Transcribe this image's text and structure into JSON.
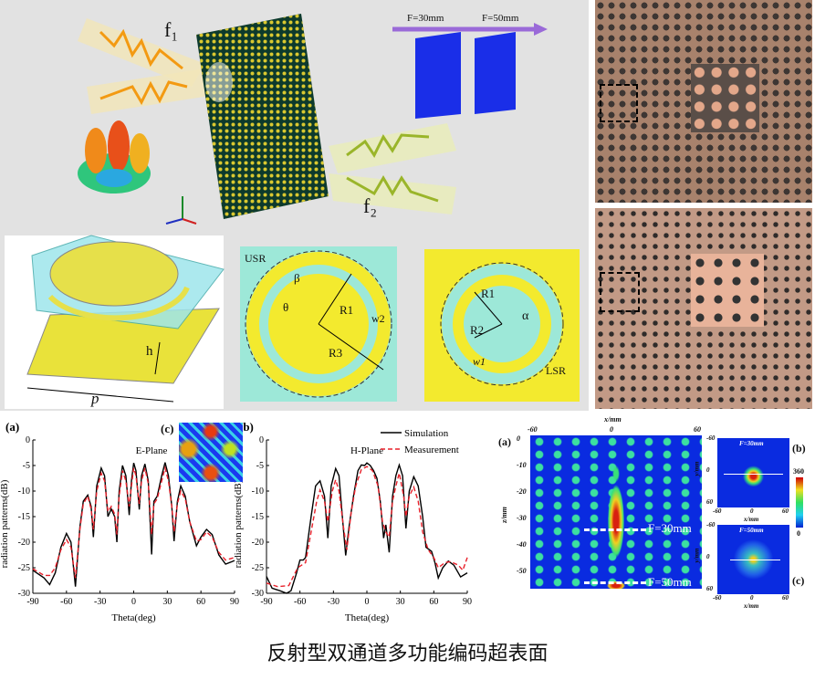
{
  "top_schematic": {
    "f1": "f₁",
    "f2": "f₂",
    "focus_labels": [
      "F=30mm",
      "F=50mm"
    ],
    "axis_labels": [
      "y",
      "x",
      "z"
    ]
  },
  "unit_cell": {
    "h": "h",
    "p": "p"
  },
  "usr_layer": {
    "usr": "USR",
    "beta": "β",
    "theta": "θ",
    "r1": "R1",
    "r3": "R3",
    "w2": "w2"
  },
  "lsr_layer": {
    "r1": "R1",
    "r2": "R2",
    "alpha": "α",
    "w1": "w1",
    "lsr": "LSR"
  },
  "colors": {
    "background_gray": "#dcdcdc",
    "metal_yellow": "#f3ea2e",
    "dielectric_cyan": "#9de8d8",
    "heatmap_blue": "#0a2be0",
    "simulation": "#000000",
    "measurement": "#e8202a"
  },
  "chart_data": [
    {
      "type": "line",
      "panel_label": "(a)",
      "title": "E-Plane",
      "xlabel": "Theta(deg)",
      "ylabel": "radiation patterns(dB)",
      "xlim": [
        -90,
        90
      ],
      "ylim": [
        -30,
        0
      ],
      "xticks": [
        "-90",
        "-60",
        "-30",
        "0",
        "30",
        "60",
        "90"
      ],
      "yticks": [
        "0",
        "-5",
        "-10",
        "-15",
        "-20",
        "-25",
        "-30"
      ],
      "series": [
        {
          "style": "solid",
          "x": [
            -90,
            -80,
            -75,
            -70,
            -65,
            -60,
            -56,
            -52,
            -48,
            -45,
            -41,
            -38,
            -36,
            -33,
            -29,
            -26,
            -23,
            -20,
            -17,
            -15,
            -13,
            -10,
            -7,
            -4,
            -2,
            0,
            2,
            5,
            7,
            10,
            13,
            16,
            18,
            21,
            25,
            28,
            31,
            34,
            36,
            39,
            42,
            46,
            50,
            56,
            60,
            65,
            70,
            76,
            82,
            90
          ],
          "y": [
            -25.5,
            -27,
            -28.3,
            -26,
            -21,
            -18.3,
            -20,
            -28.7,
            -17,
            -12,
            -10.8,
            -13,
            -19,
            -9,
            -5.5,
            -7,
            -15,
            -13.5,
            -15,
            -20,
            -10,
            -5,
            -7,
            -14.7,
            -8,
            -4.5,
            -6,
            -13.6,
            -7,
            -4.7,
            -8,
            -22.4,
            -12,
            -11,
            -7,
            -4.4,
            -7,
            -13,
            -19.8,
            -12,
            -9,
            -11,
            -16,
            -20.7,
            -19,
            -17.5,
            -18.5,
            -22.5,
            -24.3,
            -23.6
          ]
        },
        {
          "style": "dashed",
          "x": [
            -90,
            -80,
            -75,
            -70,
            -65,
            -60,
            -56,
            -52,
            -48,
            -45,
            -41,
            -38,
            -36,
            -33,
            -29,
            -26,
            -23,
            -20,
            -17,
            -15,
            -13,
            -10,
            -7,
            -4,
            -2,
            0,
            2,
            5,
            7,
            10,
            13,
            16,
            18,
            21,
            25,
            28,
            31,
            34,
            36,
            39,
            42,
            46,
            50,
            56,
            60,
            65,
            70,
            76,
            82,
            90
          ],
          "y": [
            -25.2,
            -26.5,
            -26.5,
            -25,
            -21.5,
            -19.5,
            -21,
            -27,
            -17.5,
            -12.5,
            -11,
            -13.5,
            -17.5,
            -10,
            -6.5,
            -8,
            -14,
            -13,
            -14.5,
            -18.5,
            -11,
            -6,
            -8,
            -13,
            -9,
            -5.5,
            -7,
            -12.5,
            -8,
            -5.5,
            -8.5,
            -18.5,
            -12.5,
            -11.5,
            -8,
            -5.5,
            -8,
            -13,
            -18,
            -12.5,
            -10,
            -11.5,
            -16,
            -19.8,
            -19.5,
            -18,
            -19,
            -22,
            -23.5,
            -23
          ]
        }
      ]
    },
    {
      "type": "line",
      "panel_label": "(b)",
      "title": "H-Plane",
      "xlabel": "Theta(deg)",
      "ylabel": "radiation patterns(dB)",
      "xlim": [
        -90,
        90
      ],
      "ylim": [
        -30,
        0
      ],
      "xticks": [
        "-90",
        "-60",
        "-30",
        "0",
        "30",
        "60",
        "90"
      ],
      "yticks": [
        "0",
        "-5",
        "-10",
        "-15",
        "-20",
        "-25",
        "-30"
      ],
      "legend": [
        "Simulation",
        "Measurement"
      ],
      "legend_position": "top-right",
      "series": [
        {
          "name": "Simulation",
          "style": "solid",
          "x": [
            -90,
            -85,
            -78,
            -72,
            -68,
            -63,
            -60,
            -57,
            -55,
            -50,
            -46,
            -42,
            -38,
            -35,
            -32,
            -28,
            -25,
            -22,
            -19,
            -16,
            -12,
            -8,
            -5,
            -2,
            0,
            3,
            6,
            9,
            12,
            15,
            17,
            20,
            23,
            26,
            29,
            32,
            35,
            38,
            42,
            46,
            50,
            53,
            58,
            61,
            64,
            68,
            73,
            78,
            84,
            90
          ],
          "y": [
            -26.7,
            -29,
            -29.5,
            -30,
            -29.5,
            -26,
            -23.5,
            -23.5,
            -23,
            -15,
            -9,
            -8,
            -11,
            -19.2,
            -9,
            -5.6,
            -7,
            -15,
            -22.6,
            -17,
            -11,
            -6,
            -4.9,
            -5,
            -4.5,
            -5,
            -6,
            -7.5,
            -12,
            -19.2,
            -16.6,
            -22,
            -11,
            -7,
            -4.9,
            -7,
            -17.3,
            -10,
            -7.2,
            -9,
            -15,
            -21,
            -21.8,
            -24,
            -27,
            -25,
            -23.7,
            -24.5,
            -26.8,
            -26
          ]
        },
        {
          "name": "Measurement",
          "style": "dashed",
          "x": [
            -90,
            -80,
            -70,
            -62,
            -55,
            -50,
            -45,
            -42,
            -38,
            -35,
            -31,
            -28,
            -25,
            -21,
            -18,
            -14,
            -10,
            -5,
            0,
            5,
            10,
            14,
            17,
            20,
            23,
            26,
            29,
            33,
            35,
            38,
            42,
            46,
            50,
            55,
            60,
            64,
            70,
            75,
            82,
            86,
            90
          ],
          "y": [
            -28,
            -28.7,
            -28.5,
            -25,
            -24,
            -18,
            -12,
            -9.8,
            -12,
            -16,
            -10,
            -7.8,
            -10,
            -17,
            -21.5,
            -14,
            -9,
            -5.8,
            -5.2,
            -6,
            -9,
            -16,
            -18,
            -19,
            -12,
            -9,
            -6.5,
            -11,
            -15,
            -11,
            -9.2,
            -12,
            -18,
            -21.5,
            -23,
            -25,
            -24,
            -23.8,
            -24.5,
            -25.5,
            -23
          ]
        }
      ]
    },
    {
      "type": "heatmap",
      "panel_label": "(a)",
      "xlabel": "x/mm",
      "ylabel": "z/mm",
      "xticks": [
        "-60",
        "0",
        "60"
      ],
      "yticks": [
        "0",
        "-10",
        "-20",
        "-30",
        "-40",
        "-50"
      ],
      "xlim": [
        -60,
        60
      ],
      "ylim": [
        -52,
        0
      ],
      "annotations": [
        "F=30mm",
        "F=50mm"
      ]
    },
    {
      "type": "heatmap",
      "panel_label": "(b)",
      "title": "F=30mm",
      "xlabel": "x/mm",
      "ylabel": "y/mm",
      "xticks": [
        "-60",
        "0",
        "60"
      ],
      "yticks": [
        "-60",
        "0",
        "60"
      ]
    },
    {
      "type": "heatmap",
      "panel_label": "(c)",
      "title": "F=50mm",
      "xlabel": "x/mm",
      "ylabel": "y/mm",
      "xticks": [
        "-60",
        "0",
        "60"
      ],
      "yticks": [
        "-60",
        "0",
        "60"
      ],
      "colorbar": {
        "min": "0",
        "max": "360"
      }
    }
  ],
  "inset_label": "(c)",
  "caption": "反射型双通道多功能编码超表面"
}
